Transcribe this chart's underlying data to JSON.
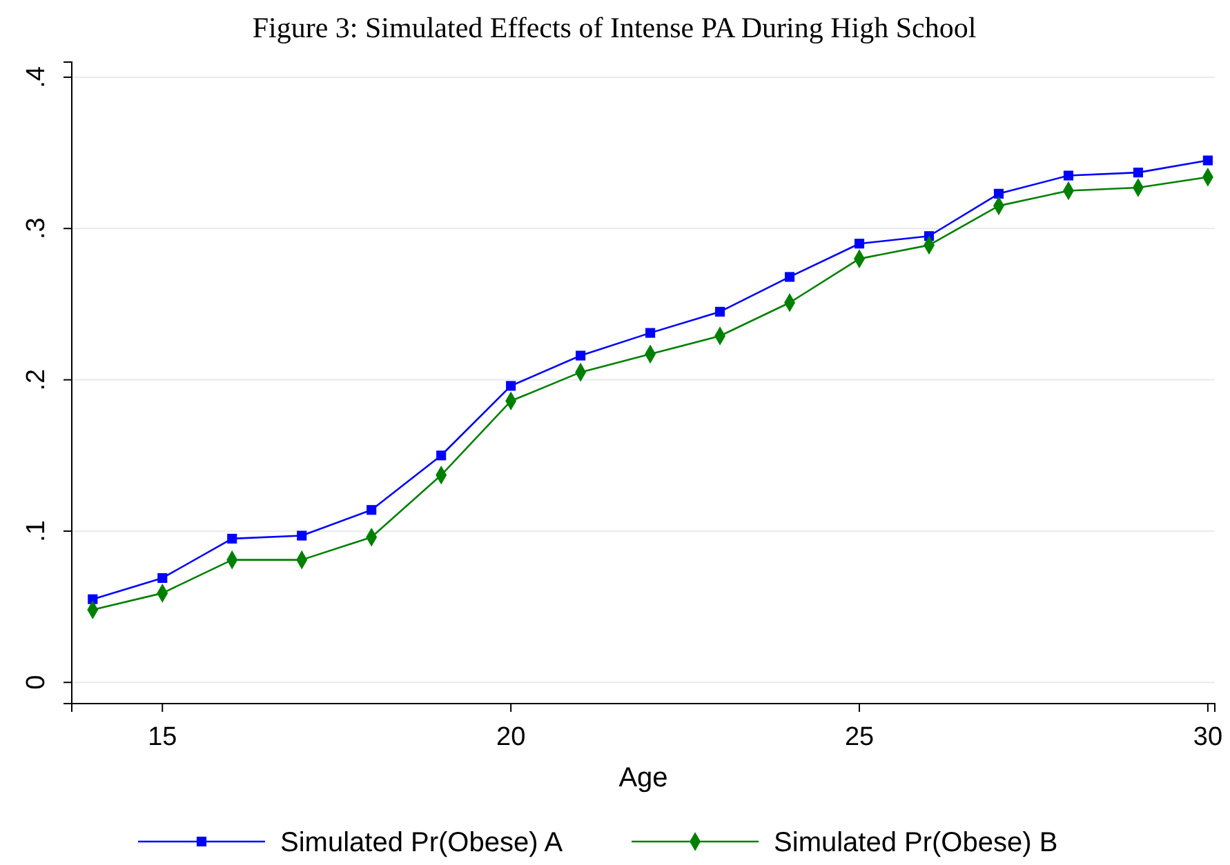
{
  "chart_data": {
    "type": "line",
    "title": "Figure 3: Simulated Effects of Intense PA During High School",
    "xlabel": "Age",
    "x": [
      14,
      15,
      16,
      17,
      18,
      19,
      20,
      21,
      22,
      23,
      24,
      25,
      26,
      27,
      28,
      29,
      30
    ],
    "series": [
      {
        "name": "Simulated Pr(Obese) A",
        "color": "#0000ff",
        "marker": "square",
        "values": [
          0.055,
          0.069,
          0.095,
          0.097,
          0.114,
          0.15,
          0.196,
          0.216,
          0.231,
          0.245,
          0.268,
          0.29,
          0.295,
          0.323,
          0.335,
          0.337,
          0.345
        ]
      },
      {
        "name": "Simulated Pr(Obese) B",
        "color": "#008000",
        "marker": "diamond",
        "values": [
          0.048,
          0.059,
          0.081,
          0.081,
          0.096,
          0.137,
          0.186,
          0.205,
          0.217,
          0.229,
          0.251,
          0.28,
          0.289,
          0.315,
          0.325,
          0.327,
          0.334
        ]
      }
    ],
    "xlim": [
      13.7,
      30.1
    ],
    "xticks": [
      15,
      20,
      25,
      30
    ],
    "ylim": [
      -0.014,
      0.41
    ],
    "yticks": [
      {
        "value": 0,
        "label": "0"
      },
      {
        "value": 0.1,
        "label": ".1"
      },
      {
        "value": 0.2,
        "label": ".2"
      },
      {
        "value": 0.3,
        "label": ".3"
      },
      {
        "value": 0.4,
        "label": ".4"
      }
    ],
    "grid": "y",
    "legend": "bottom",
    "line_style": "solid"
  }
}
